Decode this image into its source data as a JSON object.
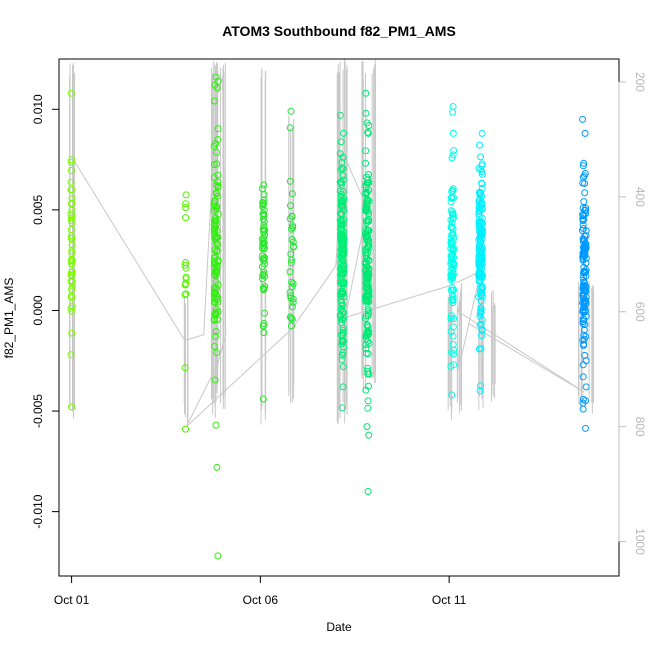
{
  "chart_data": {
    "type": "scatter",
    "title": "ATOM3 Southbound f82_PM1_AMS",
    "xlabel": "Date",
    "ylabel": "f82_PM1_AMS",
    "xlim": [
      "2016-09-30T16:00",
      "2016-10-15T12:00"
    ],
    "ylim": [
      -0.0132,
      0.0125
    ],
    "yticks": [
      -0.01,
      -0.005,
      0.0,
      0.005,
      0.01
    ],
    "ytick_labels": [
      "-0.010",
      "-0.005",
      "0.000",
      "0.005",
      "0.010"
    ],
    "xticks": [
      "2016-10-01",
      "2016-10-06",
      "2016-10-11"
    ],
    "xtick_labels": [
      "Oct 01",
      "Oct 06",
      "Oct 11"
    ],
    "right_axis": {
      "ylim": [
        1060,
        160
      ],
      "ticks": [
        200,
        400,
        600,
        800,
        1000
      ],
      "color": "#bebebe",
      "inverted": true
    },
    "grid": false,
    "profile_line_color": "#c8c8c8",
    "clusters": [
      {
        "t": "2016-10-01T00:00",
        "color": "#7cfc00",
        "spread": 0.04,
        "bias": 0.0027,
        "sd": 0.0022,
        "n": 46,
        "extra": [
          0.0108,
          -0.0048,
          -0.0022
        ]
      },
      {
        "t": "2016-10-04T00:30",
        "color": "#55f000",
        "spread": 0.03,
        "bias": 0.0015,
        "sd": 0.0025,
        "n": 14,
        "extra": [
          -0.0059,
          0.0053
        ]
      },
      {
        "t": "2016-10-04T20:00",
        "color": "#33ee11",
        "spread": 0.12,
        "bias": 0.003,
        "sd": 0.0028,
        "n": 105,
        "extra": [
          0.0116,
          0.0112,
          -0.0057,
          -0.0078,
          -0.0122
        ]
      },
      {
        "t": "2016-10-06T02:00",
        "color": "#2ae62a",
        "spread": 0.07,
        "bias": 0.0031,
        "sd": 0.0016,
        "n": 52,
        "extra": [
          -0.0044,
          -0.0011
        ]
      },
      {
        "t": "2016-10-06T20:00",
        "color": "#22e633",
        "spread": 0.1,
        "bias": 0.002,
        "sd": 0.0022,
        "n": 30,
        "extra": [
          0.0099,
          0.0058
        ]
      },
      {
        "t": "2016-10-08T04:00",
        "color": "#00ee77",
        "spread": 0.1,
        "bias": 0.0025,
        "sd": 0.0022,
        "n": 165,
        "extra": [
          0.0097,
          -0.0038,
          0.0088
        ]
      },
      {
        "t": "2016-10-08T20:00",
        "color": "#00e873",
        "spread": 0.1,
        "bias": 0.0022,
        "sd": 0.0028,
        "n": 165,
        "extra": [
          0.0098,
          -0.009,
          0.0088
        ]
      },
      {
        "t": "2016-10-11T02:00",
        "color": "#00ffea",
        "spread": 0.08,
        "bias": 0.0026,
        "sd": 0.0027,
        "n": 95,
        "extra": [
          0.0088,
          -0.0042
        ]
      },
      {
        "t": "2016-10-11T20:00",
        "color": "#00f0ff",
        "spread": 0.1,
        "bias": 0.0031,
        "sd": 0.0024,
        "n": 155,
        "extra": [
          0.0088,
          -0.004
        ]
      },
      {
        "t": "2016-10-14T14:00",
        "color": "#0099ff",
        "spread": 0.1,
        "bias": 0.0019,
        "sd": 0.0023,
        "n": 130,
        "extra": [
          0.0095,
          0.0088,
          -0.0038
        ]
      }
    ],
    "profiles": [
      {
        "t": "2016-10-01T00:00",
        "z_top": 160,
        "z_bottom": 800
      },
      {
        "t": "2016-10-04T00:30",
        "z_top": 560,
        "z_bottom": 800
      },
      {
        "t": "2016-10-04T18:00",
        "z_top": 160,
        "z_bottom": 790
      },
      {
        "t": "2016-10-04T21:00",
        "z_top": 160,
        "z_bottom": 760
      },
      {
        "t": "2016-10-05T00:00",
        "z_top": 160,
        "z_bottom": 770
      },
      {
        "t": "2016-10-06T02:00",
        "z_top": 160,
        "z_bottom": 800
      },
      {
        "t": "2016-10-06T20:00",
        "z_top": 250,
        "z_bottom": 770
      },
      {
        "t": "2016-10-08T02:00",
        "z_top": 160,
        "z_bottom": 810
      },
      {
        "t": "2016-10-08T06:00",
        "z_top": 160,
        "z_bottom": 800
      },
      {
        "t": "2016-10-08T18:00",
        "z_top": 160,
        "z_bottom": 750
      },
      {
        "t": "2016-10-09T00:00",
        "z_top": 160,
        "z_bottom": 730
      },
      {
        "t": "2016-10-11T00:00",
        "z_top": 560,
        "z_bottom": 790
      },
      {
        "t": "2016-10-11T06:00",
        "z_top": 560,
        "z_bottom": 790
      },
      {
        "t": "2016-10-11T20:00",
        "z_top": 560,
        "z_bottom": 780
      },
      {
        "t": "2016-10-12T04:00",
        "z_top": 560,
        "z_bottom": 760
      },
      {
        "t": "2016-10-14T12:00",
        "z_top": 540,
        "z_bottom": 780
      },
      {
        "t": "2016-10-14T18:00",
        "z_top": 540,
        "z_bottom": 780
      }
    ],
    "track": [
      [
        "2016-10-01T00:00",
        330
      ],
      [
        "2016-10-04T00:00",
        650
      ],
      [
        "2016-10-04T12:00",
        640
      ],
      [
        "2016-10-04T20:00",
        230
      ],
      [
        "2016-10-05T00:00",
        190
      ],
      [
        "2016-10-05T02:00",
        640
      ],
      [
        "2016-10-04T21:00",
        690
      ],
      [
        "2016-10-04T01:00",
        800
      ],
      [
        "2016-10-06T20:00",
        630
      ],
      [
        "2016-10-08T00:00",
        520
      ],
      [
        "2016-10-08T04:00",
        320
      ],
      [
        "2016-10-08T20:00",
        420
      ],
      [
        "2016-10-08T06:00",
        610
      ],
      [
        "2016-10-11T00:00",
        555
      ],
      [
        "2016-10-11T20:00",
        530
      ],
      [
        "2016-10-11T06:00",
        700
      ],
      [
        "2016-10-11T08:00",
        550
      ],
      [
        "2016-10-11T06:00",
        600
      ],
      [
        "2016-10-14T14:00",
        740
      ],
      [
        "2016-10-11T12:00",
        620
      ]
    ]
  }
}
